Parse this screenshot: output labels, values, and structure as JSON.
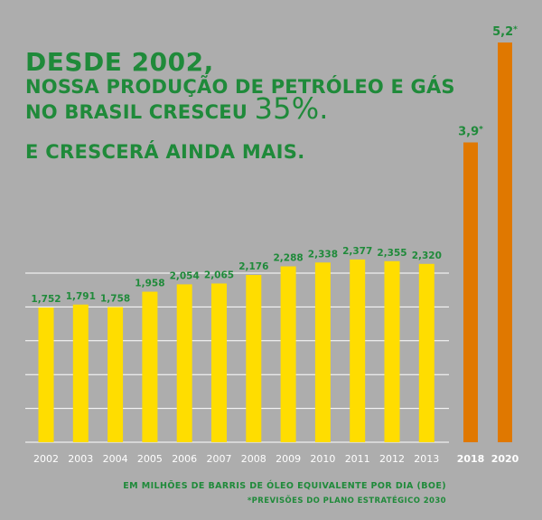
{
  "headline": {
    "line1": "DESDE 2002,",
    "line2": "NOSSA PRODUÇÃO DE PETRÓLEO E GÁS",
    "line3_prefix": "NO BRASIL CRESCEU ",
    "line3_big": "35%.",
    "line4": "E CRESCERÁ AINDA MAIS."
  },
  "footer": {
    "units": "EM MILHÕES DE BARRIS DE ÓLEO EQUIVALENTE POR DIA (BOE)",
    "note": "*PREVISÕES DO PLANO ESTRATÉGICO 2030"
  },
  "chart_data": {
    "type": "bar",
    "title": "",
    "xlabel": "",
    "ylabel": "",
    "ylim": [
      0,
      5.6
    ],
    "grid": true,
    "historical": {
      "color": "#ffdd00",
      "categories": [
        "2002",
        "2003",
        "2004",
        "2005",
        "2006",
        "2007",
        "2008",
        "2009",
        "2010",
        "2011",
        "2012",
        "2013"
      ],
      "values": [
        1.752,
        1.791,
        1.758,
        1.958,
        2.054,
        2.065,
        2.176,
        2.288,
        2.338,
        2.377,
        2.355,
        2.32
      ],
      "labels": [
        "1,752",
        "1,791",
        "1,758",
        "1,958",
        "2,054",
        "2,065",
        "2,176",
        "2,288",
        "2,338",
        "2,377",
        "2,355",
        "2,320"
      ]
    },
    "forecast": {
      "color": "#e07800",
      "categories": [
        "2018",
        "2020"
      ],
      "values": [
        3.9,
        5.2
      ],
      "labels": [
        "3,9",
        "5,2"
      ],
      "marker": "*"
    },
    "colors": {
      "text_green": "#1f8a3a",
      "tick_text": "#ffffff",
      "gridline": "#ffffff",
      "background": "#adadad"
    }
  }
}
